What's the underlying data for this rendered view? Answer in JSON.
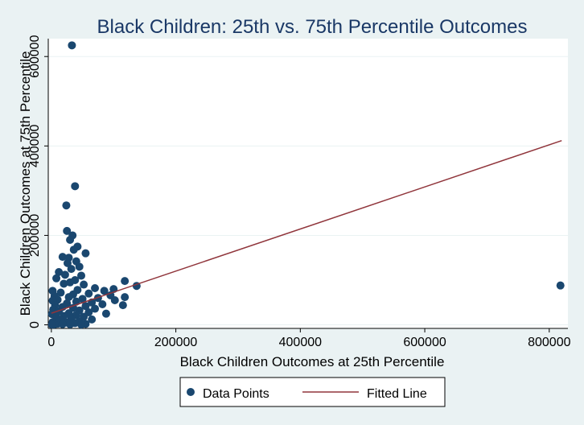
{
  "chart_data": {
    "type": "scatter",
    "title": "Black Children: 25th vs. 75th Percentile Outcomes",
    "xlabel": "Black Children Outcomes at 25th Percentile",
    "ylabel": "Black Children Outcomes at 75th Percentile",
    "xlim": [
      -5000,
      830000
    ],
    "ylim": [
      -8000,
      640000
    ],
    "xticks": [
      0,
      200000,
      400000,
      600000,
      800000
    ],
    "xtick_labels": [
      "0",
      "200000",
      "400000",
      "600000",
      "800000"
    ],
    "yticks": [
      0,
      200000,
      400000,
      600000
    ],
    "ytick_labels": [
      "0",
      "200000",
      "400000",
      "600000"
    ],
    "grid": true,
    "legend_position": "bottom",
    "colors": {
      "points": "#1a476f",
      "fitted_line": "#90353b",
      "title": "#1a3866"
    },
    "series": [
      {
        "name": "Data Points",
        "kind": "scatter",
        "points": [
          [
            33000,
            625000
          ],
          [
            38000,
            310000
          ],
          [
            24000,
            267000
          ],
          [
            25000,
            210000
          ],
          [
            34000,
            200000
          ],
          [
            30000,
            190000
          ],
          [
            42000,
            175000
          ],
          [
            36000,
            168000
          ],
          [
            55000,
            160000
          ],
          [
            18000,
            152000
          ],
          [
            28000,
            150000
          ],
          [
            40000,
            142000
          ],
          [
            26000,
            138000
          ],
          [
            45000,
            130000
          ],
          [
            32000,
            125000
          ],
          [
            12000,
            118000
          ],
          [
            22000,
            112000
          ],
          [
            48000,
            110000
          ],
          [
            8000,
            104000
          ],
          [
            38000,
            100000
          ],
          [
            118000,
            98000
          ],
          [
            30000,
            95000
          ],
          [
            20000,
            92000
          ],
          [
            52000,
            90000
          ],
          [
            137000,
            87000
          ],
          [
            818000,
            88000
          ],
          [
            70000,
            82000
          ],
          [
            100000,
            80000
          ],
          [
            42000,
            78000
          ],
          [
            85000,
            76000
          ],
          [
            2000,
            76000
          ],
          [
            15000,
            72000
          ],
          [
            60000,
            70000
          ],
          [
            35000,
            68000
          ],
          [
            95000,
            66000
          ],
          [
            5000,
            64000
          ],
          [
            28000,
            62000
          ],
          [
            118000,
            62000
          ],
          [
            75000,
            60000
          ],
          [
            50000,
            58000
          ],
          [
            10000,
            56000
          ],
          [
            102000,
            55000
          ],
          [
            2000,
            54000
          ],
          [
            40000,
            52000
          ],
          [
            65000,
            50000
          ],
          [
            25000,
            48000
          ],
          [
            82000,
            46000
          ],
          [
            115000,
            44000
          ],
          [
            6000,
            44000
          ],
          [
            55000,
            42000
          ],
          [
            18000,
            40000
          ],
          [
            35000,
            38000
          ],
          [
            70000,
            36000
          ],
          [
            3000,
            34000
          ],
          [
            45000,
            32000
          ],
          [
            12000,
            30000
          ],
          [
            60000,
            28000
          ],
          [
            28000,
            26000
          ],
          [
            88000,
            25000
          ],
          [
            1000,
            24000
          ],
          [
            40000,
            22000
          ],
          [
            20000,
            20000
          ],
          [
            52000,
            18000
          ],
          [
            8000,
            16000
          ],
          [
            32000,
            14000
          ],
          [
            65000,
            12000
          ],
          [
            15000,
            10000
          ],
          [
            45000,
            8000
          ],
          [
            2000,
            6000
          ],
          [
            25000,
            5000
          ],
          [
            38000,
            4000
          ],
          [
            10000,
            2500
          ],
          [
            55000,
            2000
          ],
          [
            18000,
            1500
          ],
          [
            30000,
            1000
          ],
          [
            5000,
            800
          ],
          [
            48000,
            600
          ],
          [
            1000,
            300
          ]
        ]
      },
      {
        "name": "Fitted Line",
        "kind": "line",
        "x": [
          0,
          820000
        ],
        "y": [
          26000,
          412000
        ]
      }
    ]
  }
}
